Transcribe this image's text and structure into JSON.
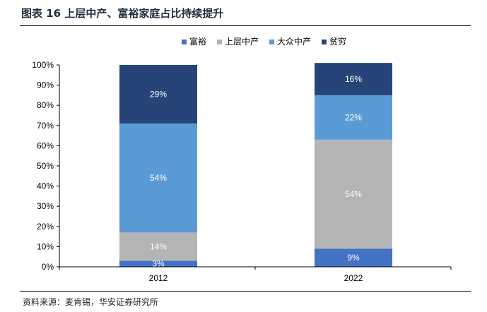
{
  "header": {
    "title": "图表 16  上层中产、富裕家庭占比持续提升"
  },
  "footer": {
    "source": "资料来源：麦肯锡，华安证券研究所"
  },
  "colors": {
    "富裕": "#4472c4",
    "上层中产": "#b4b4b4",
    "大众中产": "#5b9bd5",
    "贫穷": "#264478"
  },
  "chart_data": {
    "type": "bar",
    "stacked": true,
    "percent": true,
    "categories": [
      "2012",
      "2022"
    ],
    "series": [
      {
        "name": "富裕",
        "values": [
          3,
          9
        ],
        "labels": [
          "3%",
          "9%"
        ]
      },
      {
        "name": "上层中产",
        "values": [
          14,
          54
        ],
        "labels": [
          "14%",
          "54%"
        ]
      },
      {
        "name": "大众中产",
        "values": [
          54,
          22
        ],
        "labels": [
          "54%",
          "22%"
        ]
      },
      {
        "name": "贫穷",
        "values": [
          29,
          16
        ],
        "labels": [
          "29%",
          "16%"
        ]
      }
    ],
    "ylim": [
      0,
      100
    ],
    "yticks": [
      "0%",
      "10%",
      "20%",
      "30%",
      "40%",
      "50%",
      "60%",
      "70%",
      "80%",
      "90%",
      "100%"
    ],
    "legend_position": "top-center",
    "grid": false
  }
}
